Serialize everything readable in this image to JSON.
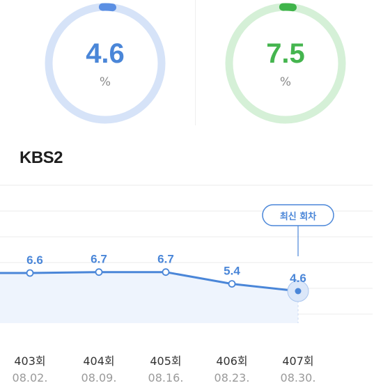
{
  "ratings": [
    {
      "value": "4.6",
      "unit": "%",
      "track_color": "#d6e3f8",
      "accent_color": "#5b8fe3",
      "text_color": "#4a86d8"
    },
    {
      "value": "7.5",
      "unit": "%",
      "track_color": "#d5f0d7",
      "accent_color": "#3fb44a",
      "text_color": "#45b54f"
    }
  ],
  "section": {
    "title": "KBS2"
  },
  "latest_badge": "최신 회차",
  "chart_data": {
    "type": "line",
    "categories": [
      "403회",
      "404회",
      "405회",
      "406회",
      "407회"
    ],
    "dates": [
      "08.02.",
      "08.09.",
      "08.16.",
      "08.23.",
      "08.30."
    ],
    "values": [
      6.6,
      6.7,
      6.7,
      5.4,
      4.6
    ],
    "value_labels": [
      "6.6",
      "6.7",
      "6.7",
      "5.4",
      "4.6"
    ],
    "highlight_index": 4,
    "line_color": "#4a86d8",
    "fill_color": "#eef4fd",
    "grid": true
  }
}
